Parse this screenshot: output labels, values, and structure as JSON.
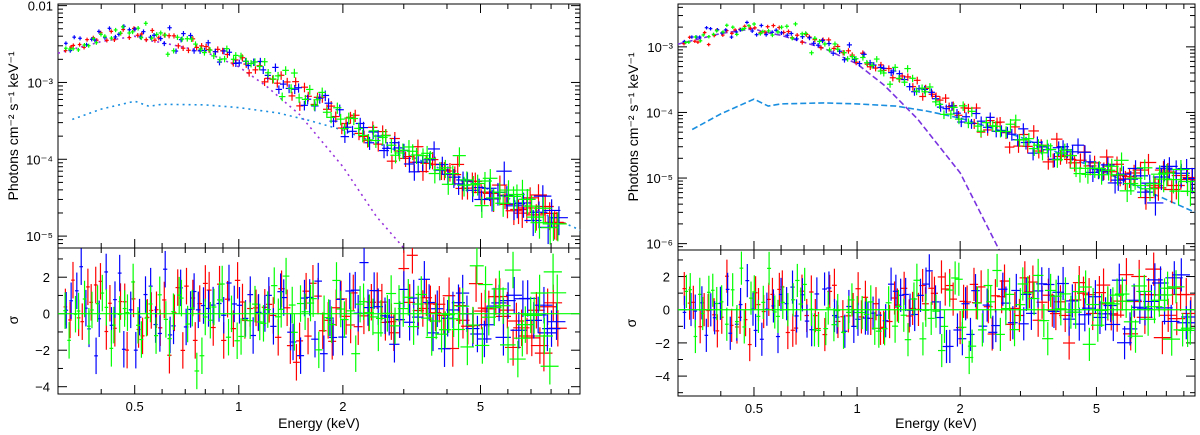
{
  "colors": {
    "data1": "#ff0000",
    "data2": "#0000ff",
    "data3": "#00ff00",
    "thermal": "#9933dd",
    "powerlaw": "#1a8fe0",
    "axis": "#000000"
  },
  "chart_data": [
    {
      "type": "scatter",
      "xlabel": "Energy (keV)",
      "ylabel": "Photons cm⁻² s⁻¹ keV⁻¹",
      "xscale": "log",
      "yscale": "log",
      "xlim": [
        0.3,
        9.7
      ],
      "ylim": [
        7e-06,
        0.0105
      ],
      "x_ticks": [
        {
          "v": 0.5,
          "label": "0.5"
        },
        {
          "v": 1,
          "label": "1"
        },
        {
          "v": 2,
          "label": "2"
        },
        {
          "v": 5,
          "label": "5"
        }
      ],
      "y_ticks": [
        {
          "v": 0.01,
          "label": "0.01"
        },
        {
          "v": 0.001,
          "label": "10⁻³"
        },
        {
          "v": 0.0001,
          "label": "10⁻⁴"
        },
        {
          "v": 1e-05,
          "label": "10⁻⁵"
        }
      ],
      "components": [
        {
          "name": "",
          "style": "dotted",
          "color": "#9933dd",
          "points": [
            [
              0.3,
              0.0024
            ],
            [
              0.4,
              0.0034
            ],
            [
              0.5,
              0.004
            ],
            [
              0.53,
              0.0036
            ],
            [
              0.6,
              0.0033
            ],
            [
              0.8,
              0.0025
            ],
            [
              1.0,
              0.0016
            ],
            [
              1.2,
              0.0009
            ],
            [
              1.5,
              0.00038
            ],
            [
              2.0,
              8e-05
            ],
            [
              2.5,
              1.8e-05
            ],
            [
              3.0,
              6e-06
            ]
          ]
        },
        {
          "name": "",
          "style": "dotted",
          "color": "#1a8fe0",
          "points": [
            [
              0.33,
              0.00033
            ],
            [
              0.4,
              0.00045
            ],
            [
              0.5,
              0.00057
            ],
            [
              0.55,
              0.00049
            ],
            [
              0.6,
              0.00052
            ],
            [
              0.8,
              0.00051
            ],
            [
              1.0,
              0.00047
            ],
            [
              1.3,
              0.0004
            ],
            [
              1.6,
              0.00032
            ],
            [
              2.0,
              0.00024
            ],
            [
              3.0,
              0.00012
            ],
            [
              5.0,
              4.5e-05
            ],
            [
              9.7,
              1.2e-05
            ]
          ]
        }
      ],
      "spectrum_model": [
        [
          0.3,
          0.0027
        ],
        [
          0.4,
          0.0039
        ],
        [
          0.5,
          0.0047
        ],
        [
          0.53,
          0.0042
        ],
        [
          0.6,
          0.0039
        ],
        [
          0.8,
          0.003
        ],
        [
          1.0,
          0.002
        ],
        [
          1.3,
          0.0011
        ],
        [
          1.6,
          0.00062
        ],
        [
          2.0,
          0.00033
        ],
        [
          3.0,
          0.00012
        ],
        [
          5.0,
          4.5e-05
        ],
        [
          9.7,
          1.2e-05
        ]
      ],
      "datasets": [
        {
          "color": "#ff0000",
          "scatter": 0.12,
          "count": 110
        },
        {
          "color": "#0000ff",
          "scatter": 0.14,
          "count": 100
        },
        {
          "color": "#00ff00",
          "scatter": 0.13,
          "count": 110
        }
      ]
    },
    {
      "type": "scatter",
      "xlabel": "Energy (keV)",
      "ylabel": "σ",
      "xscale": "log",
      "xlim": [
        0.3,
        9.7
      ],
      "ylim": [
        -4.4,
        3.6
      ],
      "x_ticks": [
        {
          "v": 0.5,
          "label": "0.5"
        },
        {
          "v": 1,
          "label": "1"
        },
        {
          "v": 2,
          "label": "2"
        },
        {
          "v": 5,
          "label": "5"
        }
      ],
      "y_ticks": [
        {
          "v": 2,
          "label": "2"
        },
        {
          "v": 0,
          "label": "0"
        },
        {
          "v": -2,
          "label": "−2"
        },
        {
          "v": -4,
          "label": "−4"
        }
      ]
    },
    {
      "type": "scatter",
      "xlabel": "Energy (keV)",
      "ylabel": "Photons cm⁻² s⁻¹ keV⁻¹",
      "xscale": "log",
      "yscale": "log",
      "xlim": [
        0.3,
        9.7
      ],
      "ylim": [
        8e-07,
        0.0045
      ],
      "x_ticks": [
        {
          "v": 0.5,
          "label": "0.5"
        },
        {
          "v": 1,
          "label": "1"
        },
        {
          "v": 2,
          "label": "2"
        },
        {
          "v": 5,
          "label": "5"
        }
      ],
      "y_ticks": [
        {
          "v": 0.001,
          "label": "10⁻³"
        },
        {
          "v": 0.0001,
          "label": "10⁻⁴"
        },
        {
          "v": 1e-05,
          "label": "10⁻⁵"
        },
        {
          "v": 1e-06,
          "label": "10⁻⁶"
        }
      ],
      "components": [
        {
          "name": "",
          "style": "dashed",
          "color": "#7a33e0",
          "points": [
            [
              0.3,
              0.0011
            ],
            [
              0.4,
              0.0016
            ],
            [
              0.5,
              0.0019
            ],
            [
              0.53,
              0.0017
            ],
            [
              0.6,
              0.0015
            ],
            [
              0.8,
              0.00095
            ],
            [
              1.0,
              0.00055
            ],
            [
              1.2,
              0.00026
            ],
            [
              1.5,
              8e-05
            ],
            [
              2.0,
              1.2e-05
            ],
            [
              2.6,
              8e-07
            ]
          ]
        },
        {
          "name": "",
          "style": "dashed",
          "color": "#1a8fe0",
          "points": [
            [
              0.33,
              5.5e-05
            ],
            [
              0.4,
              9.5e-05
            ],
            [
              0.5,
              0.00016
            ],
            [
              0.55,
              0.000125
            ],
            [
              0.6,
              0.000135
            ],
            [
              0.8,
              0.00014
            ],
            [
              1.0,
              0.000135
            ],
            [
              1.3,
              0.000125
            ],
            [
              1.6,
              0.000105
            ],
            [
              2.0,
              8.2e-05
            ],
            [
              3.0,
              4.2e-05
            ],
            [
              5.0,
              1.4e-05
            ],
            [
              9.7,
              3e-06
            ]
          ]
        }
      ],
      "spectrum_model": [
        [
          0.3,
          0.0011
        ],
        [
          0.4,
          0.0017
        ],
        [
          0.5,
          0.0021
        ],
        [
          0.53,
          0.0018
        ],
        [
          0.6,
          0.0016
        ],
        [
          0.8,
          0.0011
        ],
        [
          1.0,
          0.00068
        ],
        [
          1.3,
          0.00038
        ],
        [
          1.6,
          0.0002
        ],
        [
          2.0,
          9.5e-05
        ],
        [
          3.0,
          4.2e-05
        ],
        [
          5.0,
          1.4e-05
        ],
        [
          6.0,
          9.5e-06
        ]
      ],
      "datasets": [
        {
          "color": "#ff0000",
          "scatter": 0.13,
          "count": 110
        },
        {
          "color": "#0000ff",
          "scatter": 0.15,
          "count": 100
        },
        {
          "color": "#00ff00",
          "scatter": 0.14,
          "count": 110
        }
      ]
    },
    {
      "type": "scatter",
      "xlabel": "Energy (keV)",
      "ylabel": "σ",
      "xscale": "log",
      "xlim": [
        0.3,
        9.7
      ],
      "ylim": [
        -5.2,
        3.6
      ],
      "x_ticks": [
        {
          "v": 0.5,
          "label": "0.5"
        },
        {
          "v": 1,
          "label": "1"
        },
        {
          "v": 2,
          "label": "2"
        },
        {
          "v": 5,
          "label": "5"
        }
      ],
      "y_ticks": [
        {
          "v": 2,
          "label": "2"
        },
        {
          "v": 0,
          "label": "0"
        },
        {
          "v": -2,
          "label": "−2"
        },
        {
          "v": -4,
          "label": "−4"
        }
      ]
    }
  ]
}
